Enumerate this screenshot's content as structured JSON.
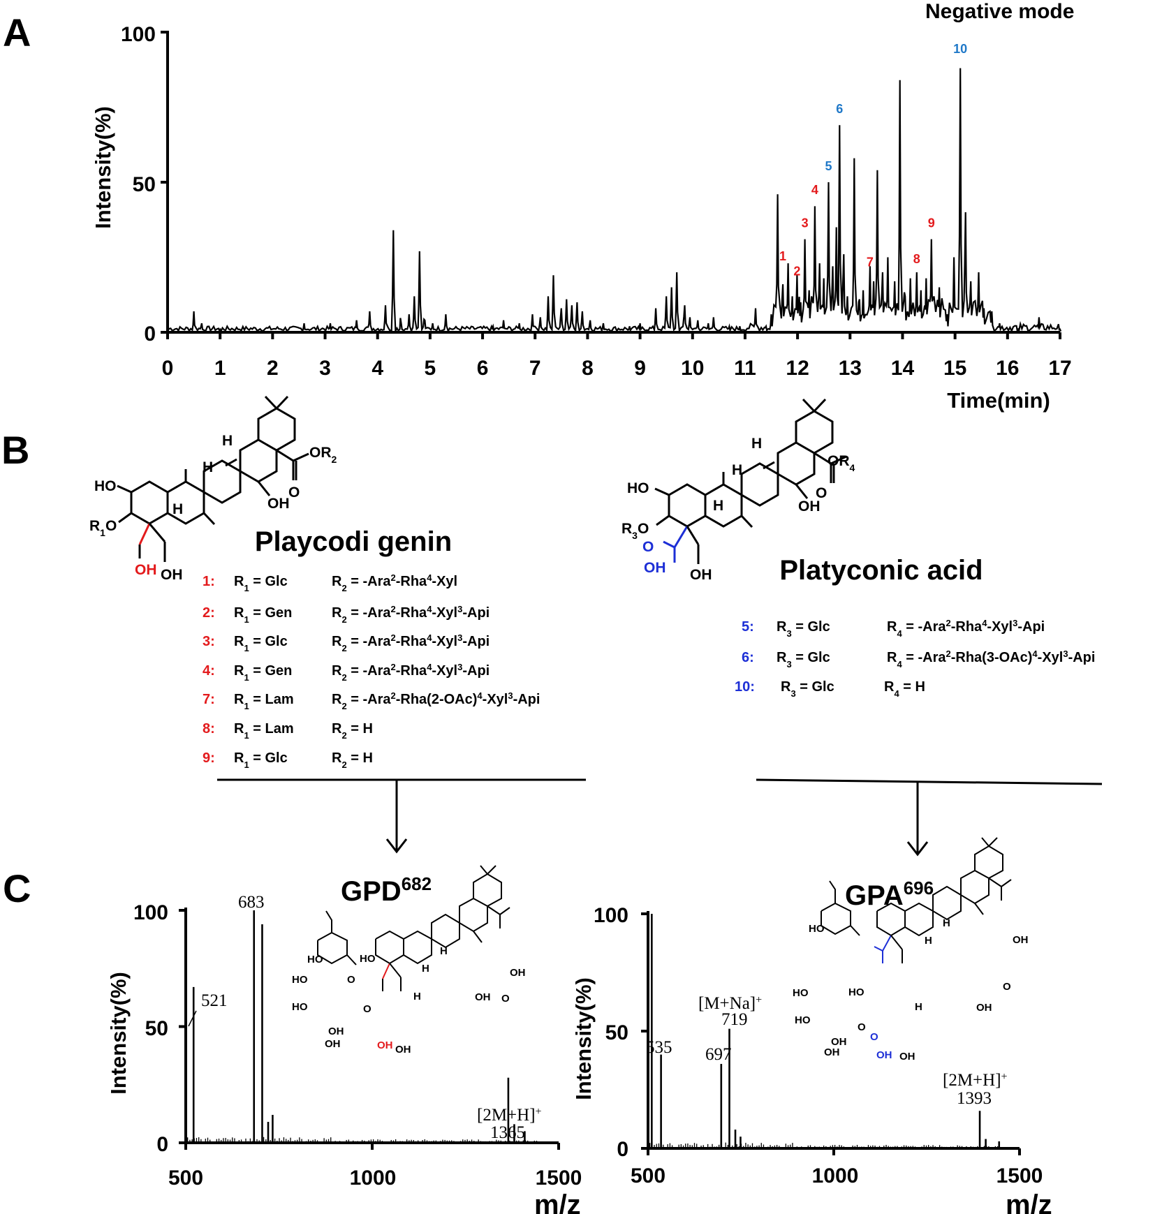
{
  "panels": {
    "a": "A",
    "b": "B",
    "c": "C"
  },
  "chromatogram": {
    "mode_label": "Negative mode",
    "ylabel": "Intensity(%)",
    "xlabel": "Time(min)",
    "yticks": [
      "0",
      "50",
      "100"
    ],
    "xticks": [
      "0",
      "1",
      "2",
      "3",
      "4",
      "5",
      "6",
      "7",
      "8",
      "9",
      "10",
      "11",
      "12",
      "13",
      "14",
      "15",
      "16",
      "17"
    ],
    "peak_labels": [
      {
        "text": "1",
        "time": 11.72,
        "y": 24,
        "color": "#e31a1c"
      },
      {
        "text": "2",
        "time": 11.99,
        "y": 19,
        "color": "#e31a1c"
      },
      {
        "text": "3",
        "time": 12.14,
        "y": 35,
        "color": "#e31a1c"
      },
      {
        "text": "4",
        "time": 12.33,
        "y": 46,
        "color": "#e31a1c"
      },
      {
        "text": "5",
        "time": 12.59,
        "y": 54,
        "color": "#1f78c8"
      },
      {
        "text": "6",
        "time": 12.8,
        "y": 73,
        "color": "#1f78c8"
      },
      {
        "text": "7",
        "time": 13.38,
        "y": 22,
        "color": "#e31a1c"
      },
      {
        "text": "8",
        "time": 14.27,
        "y": 23,
        "color": "#e31a1c"
      },
      {
        "text": "9",
        "time": 14.55,
        "y": 35,
        "color": "#e31a1c"
      },
      {
        "text": "10",
        "time": 15.1,
        "y": 93,
        "color": "#1f78c8"
      }
    ]
  },
  "chart_data": [
    {
      "type": "line",
      "title": "Negative mode",
      "xlabel": "Time(min)",
      "ylabel": "Intensity(%)",
      "xlim": [
        0,
        17
      ],
      "ylim": [
        0,
        100
      ],
      "series": [
        {
          "x": [
            0.5,
            0.65,
            1.0,
            2.6,
            3.1,
            3.6,
            3.85,
            4.15,
            4.3,
            4.45,
            4.6,
            4.7,
            4.8,
            4.9,
            5.05,
            5.3,
            6.2,
            6.4,
            6.7,
            6.95,
            7.1,
            7.25,
            7.35,
            7.5,
            7.6,
            7.7,
            7.8,
            7.9,
            8.05,
            8.3,
            8.8,
            9.0,
            9.3,
            9.5,
            9.6,
            9.7,
            9.85,
            9.95,
            10.1,
            10.3,
            10.4,
            10.7,
            10.9,
            11.2,
            11.4,
            11.5,
            11.62,
            11.72,
            11.82,
            11.9,
            11.99,
            12.06,
            12.14,
            12.22,
            12.33,
            12.42,
            12.5,
            12.59,
            12.67,
            12.74,
            12.8,
            12.88,
            12.95,
            13.08,
            13.18,
            13.25,
            13.38,
            13.45,
            13.52,
            13.62,
            13.72,
            13.85,
            13.95,
            14.05,
            14.15,
            14.27,
            14.35,
            14.45,
            14.55,
            14.7,
            14.85,
            14.98,
            15.1,
            15.2,
            15.3,
            15.45,
            15.55,
            15.7,
            15.85,
            16.2,
            16.6,
            17.0
          ],
          "y": [
            7,
            3,
            1,
            3,
            3,
            4,
            7,
            9,
            34,
            3,
            6,
            12,
            27,
            4,
            3,
            6,
            2,
            4,
            3,
            6,
            5,
            12,
            19,
            8,
            11,
            9,
            10,
            7,
            4,
            3,
            2,
            3,
            8,
            12,
            15,
            20,
            9,
            5,
            4,
            3,
            5,
            2,
            2,
            8,
            2,
            6,
            46,
            16,
            23,
            12,
            19,
            10,
            31,
            14,
            42,
            23,
            18,
            50,
            22,
            35,
            69,
            26,
            12,
            58,
            11,
            14,
            22,
            17,
            54,
            20,
            25,
            17,
            84,
            12,
            18,
            20,
            14,
            18,
            31,
            15,
            6,
            25,
            88,
            40,
            17,
            20,
            8,
            7,
            3,
            1,
            5,
            1
          ]
        }
      ]
    },
    {
      "type": "bar",
      "title": "GPD682",
      "xlabel": "m/z",
      "ylabel": "Intensity(%)",
      "xlim": [
        500,
        1500
      ],
      "ylim": [
        0,
        100
      ],
      "x": [
        521,
        683,
        705,
        721,
        733,
        1365,
        1381,
        1409
      ],
      "values": [
        67,
        100,
        94,
        9,
        12,
        28,
        8,
        5
      ]
    },
    {
      "type": "bar",
      "title": "GPA696",
      "xlabel": "m/z",
      "ylabel": "Intensity(%)",
      "xlim": [
        500,
        1500
      ],
      "ylim": [
        0,
        100
      ],
      "x": [
        510,
        535,
        697,
        719,
        735,
        749,
        1393,
        1409,
        1445
      ],
      "values": [
        100,
        40,
        36,
        51,
        8,
        5,
        16,
        4,
        3
      ]
    }
  ],
  "structures": {
    "playcodi": {
      "name": "Playcodi genin",
      "labels": {
        "ho": "HO",
        "r1o": "R",
        "r1o_sub": "1",
        "r1o_suffix": "O",
        "h1": "H",
        "h2": "H",
        "h3": "H",
        "oh_c28": "OH",
        "oh_red": "OH",
        "oh2": "OH",
        "ester": "OR",
        "ester_sub": "2",
        "o": "O"
      },
      "entries": [
        {
          "num": "1:",
          "r1": "Glc",
          "r2": "-Ara2-Rha4-Xyl"
        },
        {
          "num": "2:",
          "r1": "Gen",
          "r2": "-Ara2-Rha4-Xyl3-Api"
        },
        {
          "num": "3:",
          "r1": "Glc",
          "r2": "-Ara2-Rha4-Xyl3-Api"
        },
        {
          "num": "4:",
          "r1": "Gen",
          "r2": "-Ara2-Rha4-Xyl3-Api"
        },
        {
          "num": "7:",
          "r1": "Lam",
          "r2": "-Ara2-Rha(2-OAc)4-Xyl3-Api"
        },
        {
          "num": "8:",
          "r1": "Lam",
          "r2": "H"
        },
        {
          "num": "9:",
          "r1": "Glc",
          "r2": "H"
        }
      ]
    },
    "platyconic": {
      "name": "Platyconic acid",
      "labels": {
        "ho": "HO",
        "r3o": "R",
        "r3o_sub": "3",
        "r3o_suffix": "O",
        "h1": "H",
        "h2": "H",
        "h3": "H",
        "oh_c28": "OH",
        "oh_blue": "OH",
        "o_blue": "O",
        "oh2": "OH",
        "ester": "OR",
        "ester_sub": "4",
        "o": "O"
      },
      "entries": [
        {
          "num": "5:",
          "r3": "Glc",
          "r4": "-Ara2-Rha4-Xyl3-Api"
        },
        {
          "num": "6:",
          "r3": "Glc",
          "r4": "-Ara2-Rha(3-OAc)4-Xyl3-Api"
        },
        {
          "num": "10:",
          "r3": "Glc",
          "r4": "H"
        }
      ]
    }
  },
  "ms_gpd": {
    "title_main": "GPD",
    "title_sup": "682",
    "ylabel": "Intensity(%)",
    "xlabel": "m/z",
    "yticks": [
      "0",
      "50",
      "100"
    ],
    "xticks": [
      "500",
      "1000",
      "1500"
    ],
    "label_521": "521",
    "label_683": "683",
    "label_adduct": "[2M+H]",
    "label_adduct_sup": "+",
    "label_1365": "1365",
    "mol": {
      "ho1": "HO",
      "ho2": "HO",
      "ho3": "HO",
      "oh1": "OH",
      "ho4": "HO",
      "o1": "O",
      "o2": "O",
      "h1": "H",
      "h2": "H",
      "h3": "H",
      "oh2": "OH",
      "oh3": "OH",
      "oh4": "OH",
      "oh_red": "OH",
      "oh5": "OH",
      "o3": "O"
    }
  },
  "ms_gpa": {
    "title_main": "GPA",
    "title_sup": "696",
    "ylabel": "Intensity(%)",
    "xlabel": "m/z",
    "yticks": [
      "0",
      "50",
      "100"
    ],
    "xticks": [
      "500",
      "1000",
      "1500"
    ],
    "label_535": "535",
    "label_697": "697",
    "label_na": "[M+Na]",
    "label_na_sup": "+",
    "label_719": "719",
    "label_adduct": "[2M+H]",
    "label_adduct_sup": "+",
    "label_1393": "1393",
    "mol": {
      "ho1": "HO",
      "ho2": "HO",
      "ho3": "HO",
      "oh1": "OH",
      "ho4": "HO",
      "o1": "O",
      "h1": "H",
      "h2": "H",
      "h3": "H",
      "oh2": "OH",
      "oh3": "OH",
      "oh4": "OH",
      "oh_blue": "OH",
      "o_blue": "O",
      "oh5": "OH",
      "o3": "O"
    }
  }
}
